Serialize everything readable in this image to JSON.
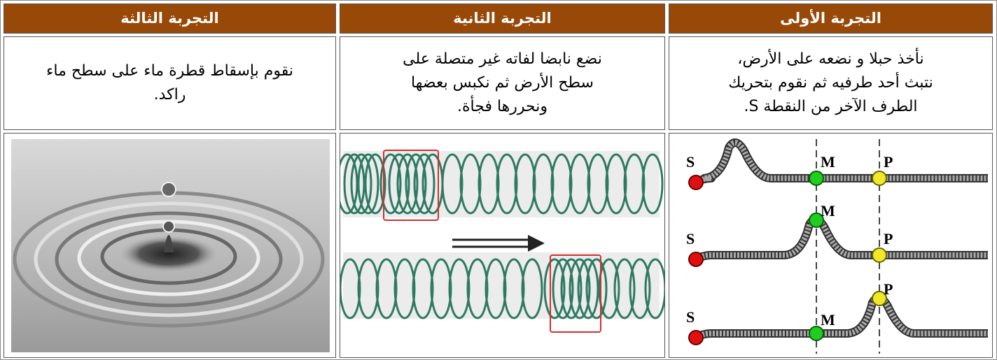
{
  "table": {
    "headers": [
      "التجربة الأولى",
      "التجربة الثانية",
      "التجربة الثالثة"
    ],
    "descriptions": [
      [
        "نأخذ حبلا و نضعه على الأرض،",
        "نتبث أحد طرفيه ثم نقوم بتحريك",
        "الطرف الآخر من النقطة S."
      ],
      [
        "نضع نابضا لفاته غير متصلة على",
        "سطح الأرض ثم نكبس بعضها",
        "ونحررها فجأة."
      ],
      [
        "نقوم بإسقاط قطرة ماء على سطح ماء",
        "راكد."
      ]
    ],
    "rope_labels": [
      "S",
      "M",
      "P"
    ]
  }
}
